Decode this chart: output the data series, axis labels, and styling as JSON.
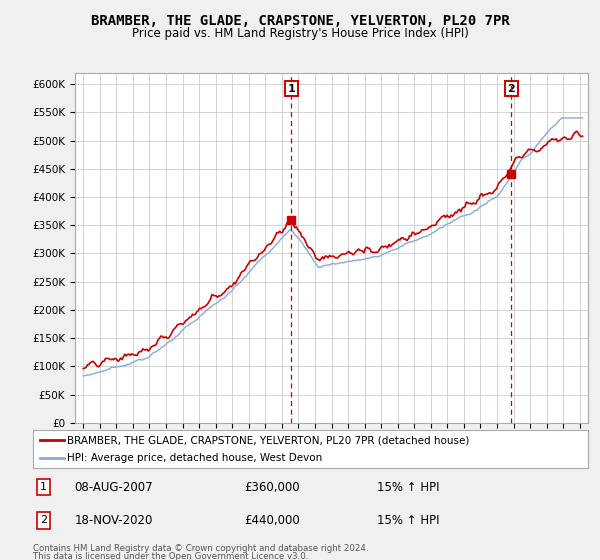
{
  "title": "BRAMBER, THE GLADE, CRAPSTONE, YELVERTON, PL20 7PR",
  "subtitle": "Price paid vs. HM Land Registry's House Price Index (HPI)",
  "ylabel_ticks": [
    "£0",
    "£50K",
    "£100K",
    "£150K",
    "£200K",
    "£250K",
    "£300K",
    "£350K",
    "£400K",
    "£450K",
    "£500K",
    "£550K",
    "£600K"
  ],
  "ytick_vals": [
    0,
    50000,
    100000,
    150000,
    200000,
    250000,
    300000,
    350000,
    400000,
    450000,
    500000,
    550000,
    600000
  ],
  "ylim": [
    0,
    620000
  ],
  "sale1_date_label": "08-AUG-2007",
  "sale1_price_label": "£360,000",
  "sale1_hpi_label": "15% ↑ HPI",
  "sale1_year": 2007.58,
  "sale1_price": 360000,
  "sale2_date_label": "18-NOV-2020",
  "sale2_price_label": "£440,000",
  "sale2_hpi_label": "15% ↑ HPI",
  "sale2_year": 2020.87,
  "sale2_price": 440000,
  "legend_property": "BRAMBER, THE GLADE, CRAPSTONE, YELVERTON, PL20 7PR (detached house)",
  "legend_hpi": "HPI: Average price, detached house, West Devon",
  "footer1": "Contains HM Land Registry data © Crown copyright and database right 2024.",
  "footer2": "This data is licensed under the Open Government Licence v3.0.",
  "line_color_property": "#cc0000",
  "line_color_hpi": "#88aadd",
  "background_color": "#f0f0f0",
  "plot_bg_color": "#ffffff",
  "grid_color": "#cccccc"
}
